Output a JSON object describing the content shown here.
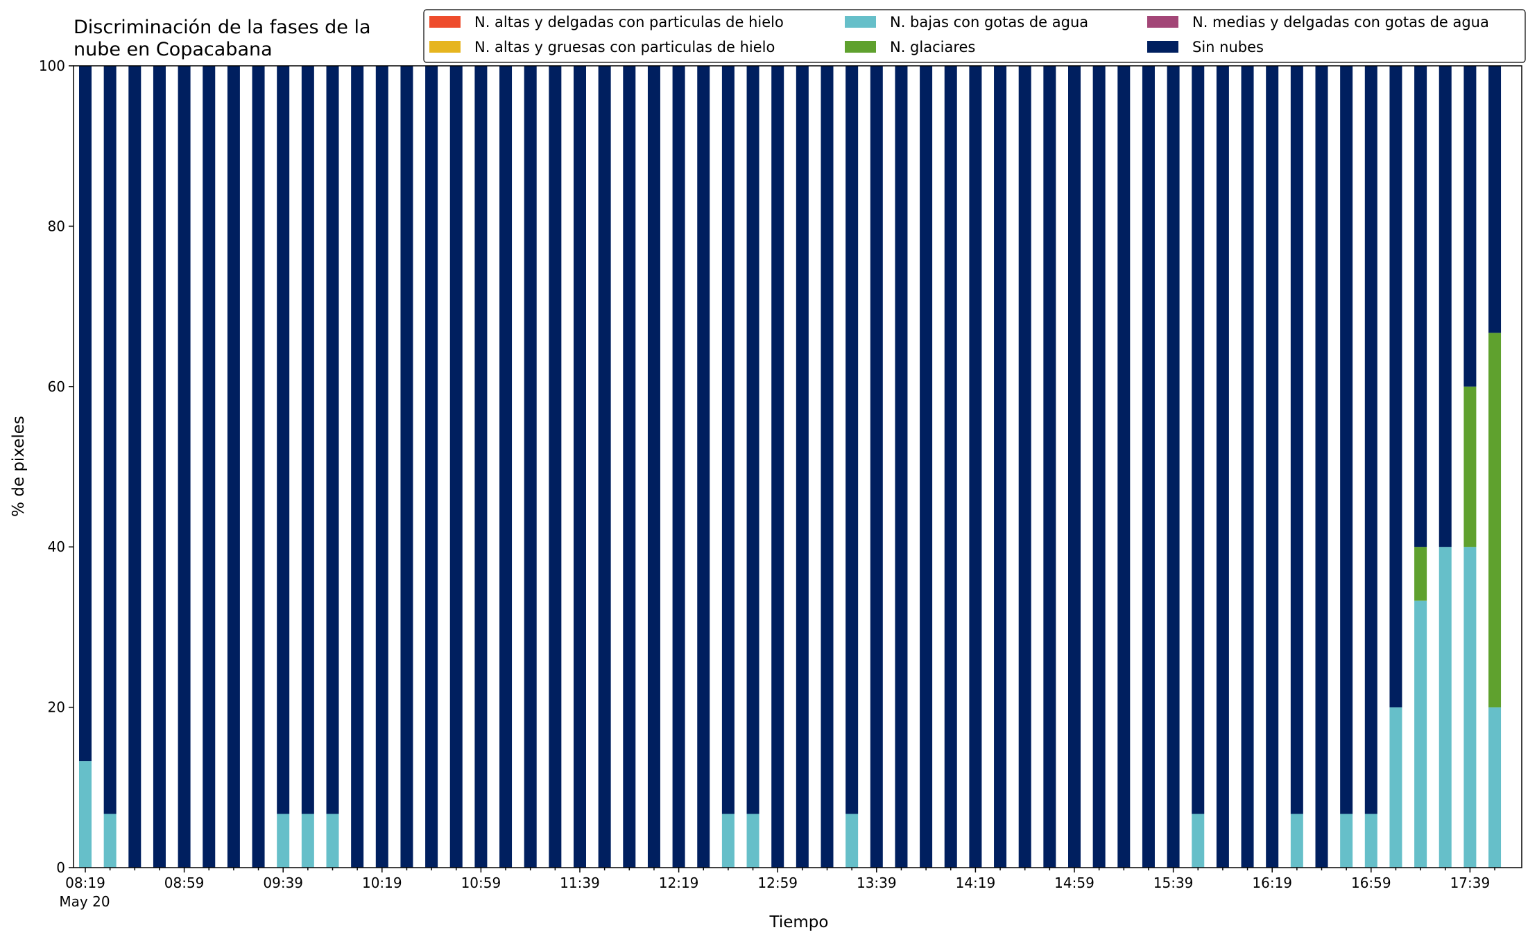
{
  "chart_data": {
    "type": "bar",
    "stacked": true,
    "title": "Discriminación de la fases de la\nnube en Copacabana",
    "xlabel": "Tiempo",
    "ylabel": "% de pixeles",
    "ylim": [
      0,
      100
    ],
    "yticks": [
      0,
      20,
      40,
      60,
      80,
      100
    ],
    "grid": false,
    "legend_position": "top-right",
    "date_label": "May 20",
    "categories": [
      "08:19",
      "08:29",
      "08:39",
      "08:49",
      "08:59",
      "09:09",
      "09:19",
      "09:29",
      "09:39",
      "09:49",
      "09:59",
      "10:09",
      "10:19",
      "10:29",
      "10:39",
      "10:49",
      "10:59",
      "11:09",
      "11:19",
      "11:29",
      "11:39",
      "11:49",
      "11:59",
      "12:09",
      "12:19",
      "12:29",
      "12:39",
      "12:49",
      "12:59",
      "13:09",
      "13:19",
      "13:29",
      "13:39",
      "13:49",
      "13:59",
      "14:09",
      "14:19",
      "14:29",
      "14:39",
      "14:49",
      "14:59",
      "15:09",
      "15:19",
      "15:29",
      "15:39",
      "15:49",
      "15:59",
      "16:09",
      "16:19",
      "16:29",
      "16:39",
      "16:49",
      "16:59",
      "17:09",
      "17:19",
      "17:29",
      "17:39",
      "17:49"
    ],
    "tick_labels": [
      "08:19",
      "08:59",
      "09:39",
      "10:19",
      "10:59",
      "11:39",
      "12:19",
      "12:59",
      "13:39",
      "14:19",
      "14:59",
      "15:39",
      "16:19",
      "16:59",
      "17:39"
    ],
    "series": [
      {
        "name": "N. altas y delgadas con particulas de hielo",
        "color": "#ee4c2c",
        "values": [
          0,
          0,
          0,
          0,
          0,
          0,
          0,
          0,
          0,
          0,
          0,
          0,
          0,
          0,
          0,
          0,
          0,
          0,
          0,
          0,
          0,
          0,
          0,
          0,
          0,
          0,
          0,
          0,
          0,
          0,
          0,
          0,
          0,
          0,
          0,
          0,
          0,
          0,
          0,
          0,
          0,
          0,
          0,
          0,
          0,
          0,
          0,
          0,
          0,
          0,
          0,
          0,
          0,
          0,
          0,
          0,
          0,
          0
        ]
      },
      {
        "name": "N. altas y gruesas con particulas de hielo",
        "color": "#e6b51f",
        "values": [
          0,
          0,
          0,
          0,
          0,
          0,
          0,
          0,
          0,
          0,
          0,
          0,
          0,
          0,
          0,
          0,
          0,
          0,
          0,
          0,
          0,
          0,
          0,
          0,
          0,
          0,
          0,
          0,
          0,
          0,
          0,
          0,
          0,
          0,
          0,
          0,
          0,
          0,
          0,
          0,
          0,
          0,
          0,
          0,
          0,
          0,
          0,
          0,
          0,
          0,
          0,
          0,
          0,
          0,
          0,
          0,
          0,
          0
        ]
      },
      {
        "name": "N. bajas con gotas de agua",
        "color": "#66bfc9",
        "values": [
          13.3,
          6.7,
          0,
          0,
          0,
          0,
          0,
          0,
          6.7,
          6.7,
          6.7,
          0,
          0,
          0,
          0,
          0,
          0,
          0,
          0,
          0,
          0,
          0,
          0,
          0,
          0,
          0,
          6.7,
          6.7,
          0,
          0,
          0,
          6.7,
          0,
          0,
          0,
          0,
          0,
          0,
          0,
          0,
          0,
          0,
          0,
          0,
          0,
          6.7,
          0,
          0,
          0,
          6.7,
          0,
          6.7,
          6.7,
          20,
          33.3,
          40,
          40,
          20
        ]
      },
      {
        "name": "N. glaciares",
        "color": "#5fa12e",
        "values": [
          0,
          0,
          0,
          0,
          0,
          0,
          0,
          0,
          0,
          0,
          0,
          0,
          0,
          0,
          0,
          0,
          0,
          0,
          0,
          0,
          0,
          0,
          0,
          0,
          0,
          0,
          0,
          0,
          0,
          0,
          0,
          0,
          0,
          0,
          0,
          0,
          0,
          0,
          0,
          0,
          0,
          0,
          0,
          0,
          0,
          0,
          0,
          0,
          0,
          0,
          0,
          0,
          0,
          0,
          6.7,
          0,
          20,
          46.7
        ]
      },
      {
        "name": "N. medias y delgadas con gotas de agua",
        "color": "#a34677",
        "values": [
          0,
          0,
          0,
          0,
          0,
          0,
          0,
          0,
          0,
          0,
          0,
          0,
          0,
          0,
          0,
          0,
          0,
          0,
          0,
          0,
          0,
          0,
          0,
          0,
          0,
          0,
          0,
          0,
          0,
          0,
          0,
          0,
          0,
          0,
          0,
          0,
          0,
          0,
          0,
          0,
          0,
          0,
          0,
          0,
          0,
          0,
          0,
          0,
          0,
          0,
          0,
          0,
          0,
          0,
          0,
          0,
          0,
          0
        ]
      },
      {
        "name": "Sin nubes",
        "color": "#001f5f",
        "values": [
          86.7,
          93.3,
          100,
          100,
          100,
          100,
          100,
          100,
          93.3,
          93.3,
          93.3,
          100,
          100,
          100,
          100,
          100,
          100,
          100,
          100,
          100,
          100,
          100,
          100,
          100,
          100,
          100,
          93.3,
          93.3,
          100,
          100,
          100,
          93.3,
          100,
          100,
          100,
          100,
          100,
          100,
          100,
          100,
          100,
          100,
          100,
          100,
          100,
          93.3,
          100,
          100,
          100,
          93.3,
          100,
          93.3,
          93.3,
          80,
          60,
          60,
          40,
          33.3
        ]
      }
    ]
  }
}
